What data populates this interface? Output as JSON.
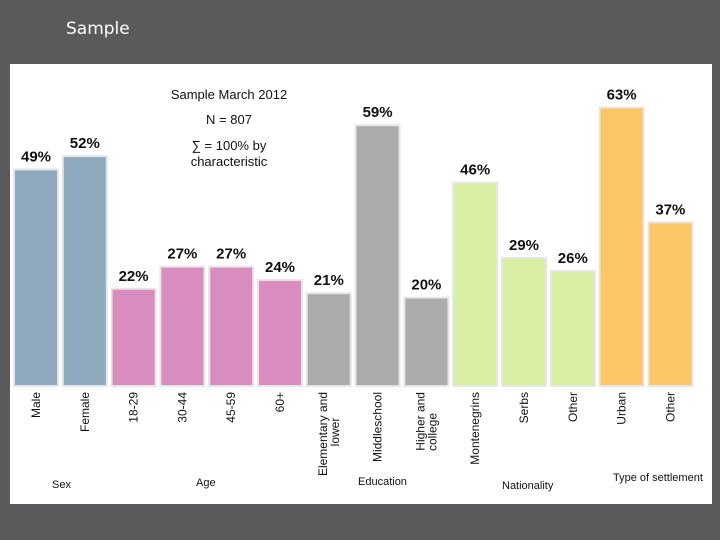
{
  "slide": {
    "title": "Sample"
  },
  "chart_data": {
    "type": "bar",
    "info_lines": [
      "Sample March 2012",
      "N = 807",
      "∑ = 100%  by",
      "characteristic"
    ],
    "ylim": [
      0,
      70
    ],
    "grid": false,
    "legend": "none",
    "groups": [
      {
        "name": "Sex",
        "color": "#8fa9be",
        "bars": [
          {
            "category": "Male",
            "value": 49,
            "label": "49%"
          },
          {
            "category": "Female",
            "value": 52,
            "label": "52%"
          }
        ]
      },
      {
        "name": "Age",
        "color": "#d98cbe",
        "bars": [
          {
            "category": "18-29",
            "value": 22,
            "label": "22%"
          },
          {
            "category": "30-44",
            "value": 27,
            "label": "27%"
          },
          {
            "category": "45-59",
            "value": 27,
            "label": "27%"
          },
          {
            "category": "60+",
            "value": 24,
            "label": "24%"
          }
        ]
      },
      {
        "name": "Education",
        "color": "#ababab",
        "bars": [
          {
            "category": "Elementary and lower",
            "value": 21,
            "label": "21%"
          },
          {
            "category": "Middleschool",
            "value": 59,
            "label": "59%"
          },
          {
            "category": "Higher and college",
            "value": 20,
            "label": "20%"
          }
        ]
      },
      {
        "name": "Nationality",
        "color": "#d8efa4",
        "bars": [
          {
            "category": "Montenegrins",
            "value": 46,
            "label": "46%"
          },
          {
            "category": "Serbs",
            "value": 29,
            "label": "29%"
          },
          {
            "category": "Other",
            "value": 26,
            "label": "26%"
          }
        ]
      },
      {
        "name": "Type of settlement",
        "color": "#fcc565",
        "bars": [
          {
            "category": "Urban",
            "value": 63,
            "label": "63%"
          },
          {
            "category": "Other",
            "value": 37,
            "label": "37%"
          }
        ]
      }
    ]
  }
}
